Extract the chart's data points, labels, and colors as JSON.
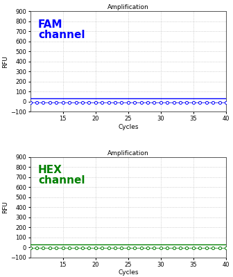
{
  "title": "Amplification",
  "xlabel": "Cycles",
  "ylabel": "RFU",
  "xlim": [
    10,
    40
  ],
  "ylim": [
    -100,
    900
  ],
  "yticks": [
    -100,
    0,
    100,
    200,
    300,
    400,
    500,
    600,
    700,
    800,
    900
  ],
  "xticks": [
    15,
    20,
    25,
    30,
    35,
    40
  ],
  "fam_label": "FAM\nchannel",
  "fam_color": "#0000FF",
  "hex_label": "HEX\nchannel",
  "hex_color": "#008000",
  "line_y": 30,
  "dot_y": -5,
  "n_dots": 31,
  "x_start": 10,
  "background_color": "#ffffff",
  "fig_background": "#ffffff",
  "grid_color": "#c0c0c0",
  "title_fontsize": 6.5,
  "label_fontsize": 6.5,
  "channel_fontsize": 11,
  "tick_fontsize": 6
}
